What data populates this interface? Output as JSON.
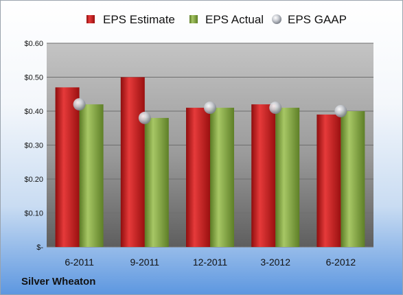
{
  "chart_data": {
    "type": "bar",
    "categories": [
      "6-2011",
      "9-2011",
      "12-2011",
      "3-2012",
      "6-2012"
    ],
    "series": [
      {
        "name": "EPS Estimate",
        "type": "bar",
        "color": "#cc1f1f",
        "values": [
          0.47,
          0.5,
          0.41,
          0.42,
          0.39
        ]
      },
      {
        "name": "EPS Actual",
        "type": "bar",
        "color": "#7da23e",
        "values": [
          0.42,
          0.38,
          0.41,
          0.41,
          0.4
        ]
      },
      {
        "name": "EPS GAAP",
        "type": "scatter",
        "color": "#b8bcc4",
        "values": [
          0.42,
          0.38,
          0.41,
          0.41,
          0.4
        ]
      }
    ],
    "yticks": [
      "$-",
      "$0.10",
      "$0.20",
      "$0.30",
      "$0.40",
      "$0.50",
      "$0.60"
    ],
    "ylim": [
      0,
      0.6
    ],
    "grid": true,
    "legend_position": "top"
  },
  "footer": {
    "company": "Silver Wheaton"
  }
}
